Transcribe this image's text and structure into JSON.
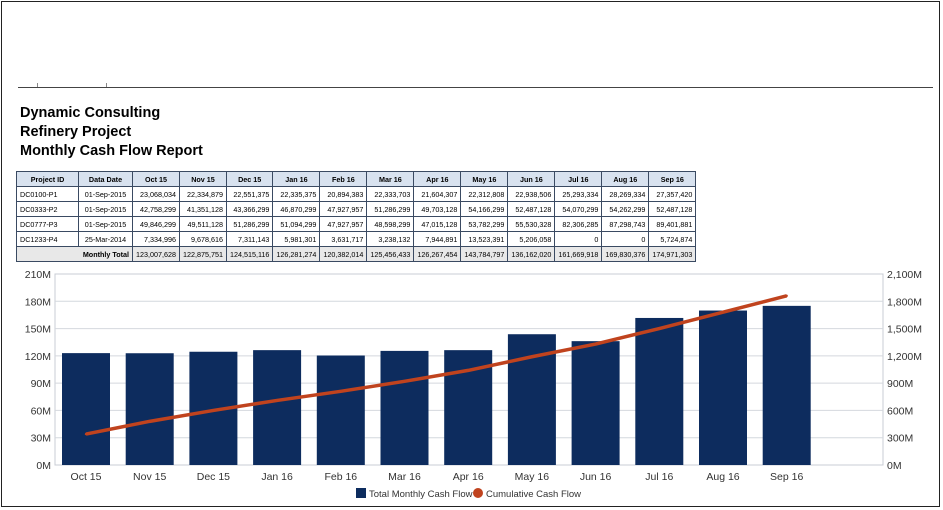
{
  "report": {
    "company": "Dynamic Consulting",
    "project": "Refinery Project",
    "title": "Monthly Cash Flow Report"
  },
  "table": {
    "headers": [
      "Project ID",
      "Data Date",
      "Oct 15",
      "Nov 15",
      "Dec 15",
      "Jan 16",
      "Feb 16",
      "Mar 16",
      "Apr 16",
      "May 16",
      "Jun 16",
      "Jul 16",
      "Aug 16",
      "Sep 16"
    ],
    "rows": [
      {
        "id": "DC0100-P1",
        "date": "01-Sep-2015",
        "values": [
          "23,068,034",
          "22,334,879",
          "22,551,375",
          "22,335,375",
          "20,894,383",
          "22,333,703",
          "21,604,307",
          "22,312,808",
          "22,938,506",
          "25,293,334",
          "28,269,334",
          "27,357,420"
        ]
      },
      {
        "id": "DC0333-P2",
        "date": "01-Sep-2015",
        "values": [
          "42,758,299",
          "41,351,128",
          "43,366,299",
          "46,870,299",
          "47,927,957",
          "51,286,299",
          "49,703,128",
          "54,166,299",
          "52,487,128",
          "54,070,299",
          "54,262,299",
          "52,487,128"
        ]
      },
      {
        "id": "DC0777-P3",
        "date": "01-Sep-2015",
        "values": [
          "49,846,299",
          "49,511,128",
          "51,286,299",
          "51,094,299",
          "47,927,957",
          "48,598,299",
          "47,015,128",
          "53,782,299",
          "55,530,328",
          "82,306,285",
          "87,298,743",
          "89,401,881"
        ]
      },
      {
        "id": "DC1233-P4",
        "date": "25-Mar-2014",
        "values": [
          "7,334,996",
          "9,678,616",
          "7,311,143",
          "5,981,301",
          "3,631,717",
          "3,238,132",
          "7,944,891",
          "13,523,391",
          "5,206,058",
          "0",
          "0",
          "5,724,874"
        ]
      }
    ],
    "total_label": "Monthly Total",
    "totals": [
      "123,007,628",
      "122,875,751",
      "124,515,116",
      "126,281,274",
      "120,382,014",
      "125,456,433",
      "126,267,454",
      "143,784,797",
      "136,162,020",
      "161,669,918",
      "169,830,376",
      "174,971,303"
    ]
  },
  "chart_data": {
    "type": "bar",
    "categories": [
      "Oct 15",
      "Nov 15",
      "Dec 15",
      "Jan 16",
      "Feb 16",
      "Mar 16",
      "Apr 16",
      "May 16",
      "Jun 16",
      "Jul 16",
      "Aug 16",
      "Sep 16"
    ],
    "series": [
      {
        "name": "Total Monthly Cash Flow",
        "type": "bar",
        "axis": "left",
        "color": "#0d2c5e",
        "values": [
          123007628,
          122875751,
          124515116,
          126281274,
          120382014,
          125456433,
          126267454,
          143784797,
          136162020,
          161669918,
          169830376,
          174971303
        ]
      },
      {
        "name": "Cumulative Cash Flow",
        "type": "line",
        "axis": "right",
        "color": "#c0431e",
        "values": [
          340000000,
          480000000,
          600000000,
          710000000,
          810000000,
          920000000,
          1040000000,
          1190000000,
          1330000000,
          1500000000,
          1680000000,
          1860000000
        ]
      }
    ],
    "ylim": [
      0,
      210000000
    ],
    "ylim_right": [
      0,
      2100000000
    ],
    "yticks_left": [
      "0M",
      "30M",
      "60M",
      "90M",
      "120M",
      "150M",
      "180M",
      "210M"
    ],
    "yticks_right": [
      "0M",
      "300M",
      "600M",
      "900M",
      "1,200M",
      "1,500M",
      "1,800M",
      "2,100M"
    ],
    "grid": true,
    "legend_position": "bottom"
  }
}
